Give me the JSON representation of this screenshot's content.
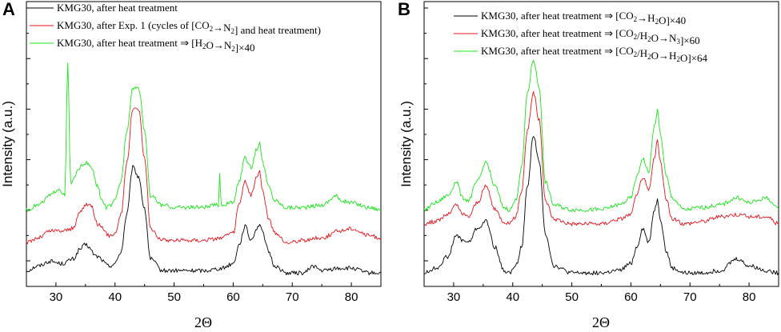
{
  "colors": {
    "black": "#000000",
    "red": "#e8141b",
    "green": "#19e619"
  },
  "chart_data": [
    {
      "type": "line",
      "panel": "A",
      "xlabel": "2Θ",
      "ylabel": "Intensity (a.u.)",
      "xlim": [
        25,
        85
      ],
      "xticks": [
        30,
        40,
        50,
        60,
        70,
        80
      ],
      "yticks_count": 5,
      "ylim": [
        0,
        100
      ],
      "legend": [
        {
          "color": "black",
          "parts": [
            [
              "t",
              "KMG30, after heat treatment"
            ]
          ]
        },
        {
          "color": "red",
          "parts": [
            [
              "t",
              "KMG30, after Exp. 1 (cycles of [CO"
            ],
            [
              "s",
              "2"
            ],
            [
              "t",
              "→N"
            ],
            [
              "s",
              "2"
            ],
            [
              "t",
              "] and heat treatment)"
            ]
          ]
        },
        {
          "color": "green",
          "parts": [
            [
              "t",
              "KMG30, after heat treatment ⇒ [H"
            ],
            [
              "s",
              "2"
            ],
            [
              "t",
              "O→N"
            ],
            [
              "s",
              "2"
            ],
            [
              "t",
              "]×40"
            ]
          ]
        }
      ],
      "series": [
        {
          "name": "KMG30, after heat treatment",
          "color": "black",
          "x": [
            25,
            27,
            29,
            31,
            33,
            34,
            35,
            37,
            39,
            40,
            41,
            42,
            43,
            44,
            45,
            46,
            48,
            50,
            55,
            58,
            60,
            61,
            62,
            63,
            64,
            64.5,
            65,
            66,
            67,
            69,
            72,
            73.5,
            75,
            78,
            80,
            83,
            85
          ],
          "y": [
            4,
            6,
            8,
            7,
            9,
            13,
            15,
            10,
            6,
            7,
            12,
            28,
            48,
            44,
            30,
            9,
            4,
            4,
            4,
            5,
            7,
            15,
            23,
            17,
            22,
            24,
            20,
            12,
            6,
            3,
            3,
            6,
            4,
            5,
            5,
            3,
            3
          ]
        },
        {
          "name": "KMG30, after Exp. 1 (cycles of [CO2→N2] and heat treatment)",
          "color": "red",
          "x": [
            25,
            27,
            29,
            31,
            33,
            34,
            35,
            36,
            37,
            39,
            40,
            41,
            42,
            43,
            44,
            45,
            46,
            48,
            50,
            55,
            58,
            60,
            61,
            62,
            63,
            64,
            64.5,
            65,
            66,
            67,
            69,
            72,
            75,
            78,
            80,
            83,
            85
          ],
          "y": [
            16,
            18,
            21,
            21,
            22,
            29,
            32,
            32,
            24,
            19,
            20,
            28,
            50,
            73,
            73,
            52,
            22,
            17,
            17,
            17,
            18,
            20,
            32,
            42,
            36,
            44,
            46,
            38,
            26,
            20,
            16,
            17,
            18,
            21,
            22,
            19,
            18
          ]
        },
        {
          "name": "KMG30, after heat treatment ⇒ [H2O→N2]×40",
          "color": "green",
          "x": [
            25,
            27,
            29,
            30.5,
            31.5,
            32,
            32.5,
            33,
            34,
            35,
            36,
            37,
            37.8,
            38.5,
            39.5,
            40,
            41,
            42,
            43,
            44,
            45,
            46,
            48,
            50,
            55,
            57.5,
            57.7,
            58,
            60,
            61,
            62,
            63,
            64,
            64.5,
            65,
            66,
            67,
            69,
            72,
            75,
            77.5,
            78,
            80,
            83,
            85
          ],
          "y": [
            30,
            32,
            36,
            39,
            36,
            92,
            41,
            43,
            48,
            50,
            48,
            40,
            34,
            31,
            32,
            34,
            42,
            64,
            82,
            82,
            64,
            36,
            32,
            31,
            31,
            32,
            45,
            32,
            33,
            42,
            52,
            48,
            56,
            58,
            50,
            40,
            34,
            31,
            31,
            32,
            36,
            34,
            33,
            31,
            30
          ]
        }
      ]
    },
    {
      "type": "line",
      "panel": "B",
      "xlabel": "2Θ",
      "ylabel": "Intensity (a.u.)",
      "xlim": [
        25,
        85
      ],
      "xticks": [
        30,
        40,
        50,
        60,
        70,
        80
      ],
      "yticks_count": 5,
      "ylim": [
        0,
        100
      ],
      "legend": [
        {
          "color": "black",
          "parts": [
            [
              "t",
              "KMG30, after heat treatment ⇒ [CO"
            ],
            [
              "s",
              "2"
            ],
            [
              "t",
              "→H"
            ],
            [
              "s",
              "2"
            ],
            [
              "t",
              "O]×40"
            ]
          ]
        },
        {
          "color": "red",
          "parts": [
            [
              "t",
              "KMG30, after heat treatment ⇒ [CO"
            ],
            [
              "s",
              "2"
            ],
            [
              "t",
              "/H"
            ],
            [
              "s",
              "2"
            ],
            [
              "t",
              "O→N"
            ],
            [
              "s",
              "3"
            ],
            [
              "t",
              "]×60"
            ]
          ]
        },
        {
          "color": "green",
          "parts": [
            [
              "t",
              "KMG30, after heat treatment ⇒ [CO"
            ],
            [
              "s",
              "2"
            ],
            [
              "t",
              "/H"
            ],
            [
              "s",
              "2"
            ],
            [
              "t",
              "O→H"
            ],
            [
              "s",
              "2"
            ],
            [
              "t",
              "O]×64"
            ]
          ]
        }
      ],
      "series": [
        {
          "name": "KMG30, after heat treatment ⇒ [CO2→H2O]×40",
          "color": "black",
          "x": [
            25,
            27,
            29,
            30.5,
            31.5,
            32.5,
            34,
            35.5,
            37,
            38.5,
            39.5,
            40.5,
            41.5,
            42.5,
            43.5,
            44.5,
            45.5,
            47,
            50,
            55,
            58,
            60,
            61,
            62,
            63,
            64,
            64.5,
            65,
            66,
            67,
            69,
            72,
            75,
            78,
            80,
            83,
            85
          ],
          "y": [
            3,
            5,
            10,
            19,
            17,
            16,
            22,
            25,
            14,
            4,
            3,
            6,
            14,
            40,
            62,
            50,
            20,
            6,
            3,
            3,
            4,
            7,
            14,
            22,
            16,
            30,
            34,
            26,
            12,
            5,
            3,
            3,
            4,
            9,
            6,
            4,
            3
          ]
        },
        {
          "name": "KMG30, after heat treatment ⇒ [CO2/H2O→N3]×60",
          "color": "red",
          "x": [
            25,
            27,
            29,
            30.5,
            31.5,
            32.5,
            34,
            35.5,
            37,
            38.5,
            39.5,
            40.5,
            41.5,
            42.5,
            43.5,
            44.5,
            45.5,
            47,
            50,
            55,
            58,
            60,
            61,
            62,
            63,
            64,
            64.5,
            65,
            66,
            67,
            69,
            72,
            75,
            78,
            80,
            83,
            85
          ],
          "y": [
            24,
            25,
            28,
            32,
            28,
            27,
            33,
            40,
            30,
            25,
            24,
            27,
            38,
            64,
            80,
            68,
            34,
            26,
            24,
            24,
            26,
            28,
            36,
            44,
            38,
            52,
            60,
            50,
            34,
            26,
            24,
            25,
            27,
            28,
            27,
            27,
            24
          ]
        },
        {
          "name": "KMG30, after heat treatment ⇒ [CO2/H2O→H2O]×64",
          "color": "green",
          "x": [
            25,
            27,
            29,
            30.5,
            31.5,
            32.5,
            34,
            35.5,
            37,
            38.5,
            39.5,
            40.5,
            41.5,
            42.5,
            43.5,
            44.5,
            45.5,
            47,
            50,
            55,
            58,
            60,
            61,
            62,
            63,
            64,
            64.5,
            65,
            66,
            67,
            69,
            72,
            75,
            78,
            80,
            83,
            85
          ],
          "y": [
            30,
            33,
            36,
            42,
            35,
            34,
            42,
            50,
            40,
            31,
            30,
            34,
            48,
            80,
            94,
            82,
            42,
            32,
            30,
            30,
            32,
            35,
            44,
            52,
            46,
            66,
            72,
            62,
            44,
            35,
            30,
            31,
            32,
            35,
            33,
            35,
            30
          ]
        }
      ]
    }
  ]
}
